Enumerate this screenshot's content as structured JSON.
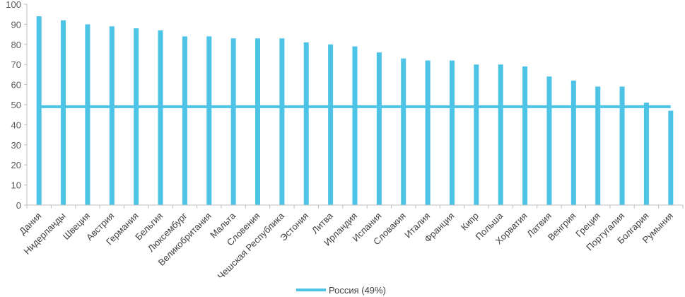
{
  "chart_data": {
    "type": "bar",
    "title": "",
    "xlabel": "",
    "ylabel": "",
    "ylim": [
      0,
      100
    ],
    "yticks": [
      0,
      10,
      20,
      30,
      40,
      50,
      60,
      70,
      80,
      90,
      100
    ],
    "grid": false,
    "categories": [
      "Дания",
      "Нидерланды",
      "Швеция",
      "Австрия",
      "Германия",
      "Бельгия",
      "Люксембург",
      "Великобритания",
      "Мальта",
      "Словения",
      "Чешская Республика",
      "Эстония",
      "Литва",
      "Ирландия",
      "Испания",
      "Словакия",
      "Италия",
      "Франция",
      "Кипр",
      "Польша",
      "Хорватия",
      "Латвия",
      "Венгрия",
      "Греция",
      "Португалия",
      "Болгария",
      "Румыния"
    ],
    "values": [
      94,
      92,
      90,
      89,
      88,
      87,
      84,
      84,
      83,
      83,
      83,
      81,
      80,
      79,
      76,
      73,
      72,
      72,
      70,
      70,
      69,
      64,
      62,
      59,
      59,
      51,
      47
    ],
    "bar_color": "#4dc3e6",
    "reference_line": {
      "name": "Россия (49%)",
      "value": 49,
      "color": "#4dc3e6"
    },
    "legend_position": "bottom"
  }
}
